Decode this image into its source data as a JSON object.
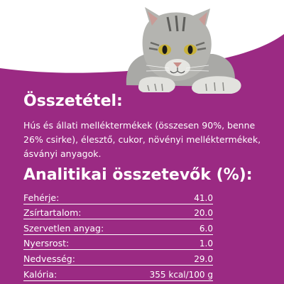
{
  "colors": {
    "background_purple": "#9b2a83",
    "text": "#ffffff"
  },
  "image": {
    "subject": "tabby-cat-illustration"
  },
  "composition": {
    "heading": "Összetétel:",
    "text": "Hús és állati melléktermékek (összesen 90%, benne 26% csirke), élesztő, cukor, növényi melléktermékek, ásványi anyagok."
  },
  "analysis": {
    "heading": "Analitikai összetevők (%):",
    "rows": [
      {
        "label": "Fehérje:",
        "value": "41.0"
      },
      {
        "label": "Zsírtartalom:",
        "value": "20.0"
      },
      {
        "label": "Szervetlen anyag:",
        "value": "6.0"
      },
      {
        "label": "Nyersrost:",
        "value": "1.0"
      },
      {
        "label": "Nedvesség:",
        "value": "29.0"
      },
      {
        "label": "Kalória:",
        "value": "355 kcal/100 g"
      }
    ]
  }
}
